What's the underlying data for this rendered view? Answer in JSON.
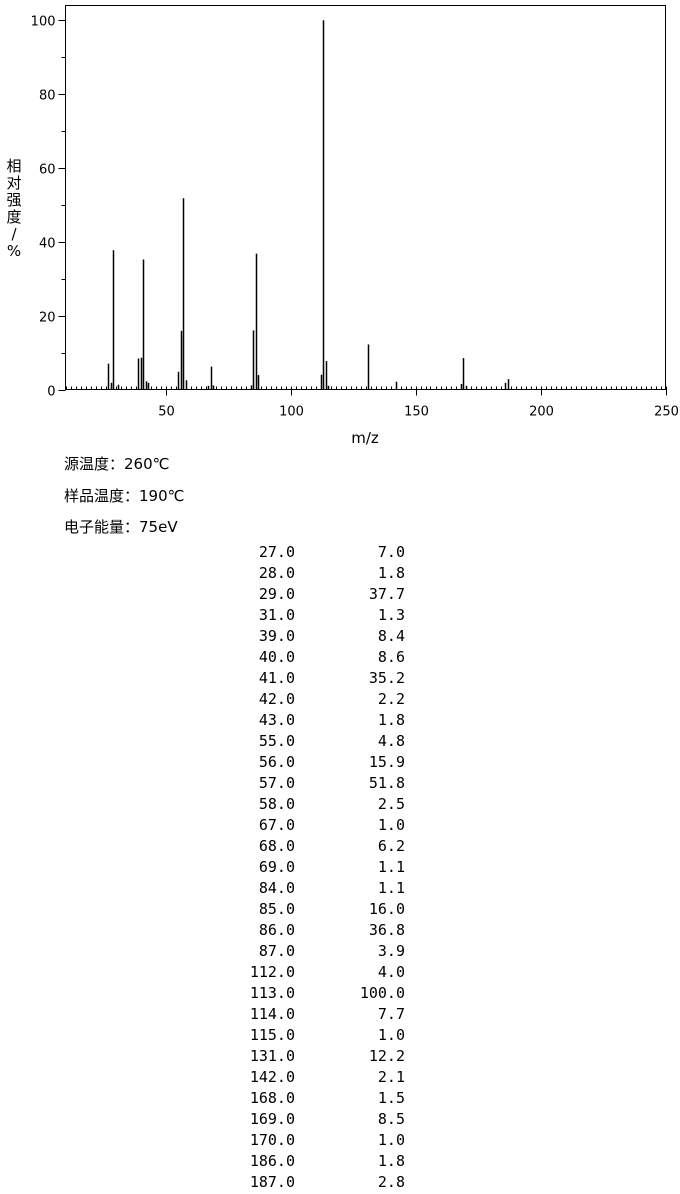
{
  "chart_data": {
    "type": "bar",
    "xlabel": "m/z",
    "ylabel": "相对强度/%",
    "xlim": [
      10,
      250
    ],
    "ylim": [
      0,
      104
    ],
    "x_ticks": [
      50,
      100,
      150,
      200,
      250
    ],
    "y_ticks": [
      0,
      20,
      40,
      60,
      80,
      100
    ],
    "peaks": [
      {
        "mz": 27.0,
        "intensity": 7.0
      },
      {
        "mz": 28.0,
        "intensity": 1.8
      },
      {
        "mz": 29.0,
        "intensity": 37.7
      },
      {
        "mz": 31.0,
        "intensity": 1.3
      },
      {
        "mz": 39.0,
        "intensity": 8.4
      },
      {
        "mz": 40.0,
        "intensity": 8.6
      },
      {
        "mz": 41.0,
        "intensity": 35.2
      },
      {
        "mz": 42.0,
        "intensity": 2.2
      },
      {
        "mz": 43.0,
        "intensity": 1.8
      },
      {
        "mz": 55.0,
        "intensity": 4.8
      },
      {
        "mz": 56.0,
        "intensity": 15.9
      },
      {
        "mz": 57.0,
        "intensity": 51.8
      },
      {
        "mz": 58.0,
        "intensity": 2.5
      },
      {
        "mz": 67.0,
        "intensity": 1.0
      },
      {
        "mz": 68.0,
        "intensity": 6.2
      },
      {
        "mz": 69.0,
        "intensity": 1.1
      },
      {
        "mz": 84.0,
        "intensity": 1.1
      },
      {
        "mz": 85.0,
        "intensity": 16.0
      },
      {
        "mz": 86.0,
        "intensity": 36.8
      },
      {
        "mz": 87.0,
        "intensity": 3.9
      },
      {
        "mz": 112.0,
        "intensity": 4.0
      },
      {
        "mz": 113.0,
        "intensity": 100.0
      },
      {
        "mz": 114.0,
        "intensity": 7.7
      },
      {
        "mz": 115.0,
        "intensity": 1.0
      },
      {
        "mz": 131.0,
        "intensity": 12.2
      },
      {
        "mz": 142.0,
        "intensity": 2.1
      },
      {
        "mz": 168.0,
        "intensity": 1.5
      },
      {
        "mz": 169.0,
        "intensity": 8.5
      },
      {
        "mz": 170.0,
        "intensity": 1.0
      },
      {
        "mz": 186.0,
        "intensity": 1.8
      },
      {
        "mz": 187.0,
        "intensity": 2.8
      }
    ],
    "peak_table": [
      [
        "27.0",
        "7.0"
      ],
      [
        "28.0",
        "1.8"
      ],
      [
        "29.0",
        "37.7"
      ],
      [
        "31.0",
        "1.3"
      ],
      [
        "39.0",
        "8.4"
      ],
      [
        "40.0",
        "8.6"
      ],
      [
        "41.0",
        "35.2"
      ],
      [
        "42.0",
        "2.2"
      ],
      [
        "43.0",
        "1.8"
      ],
      [
        "55.0",
        "4.8"
      ],
      [
        "56.0",
        "15.9"
      ],
      [
        "57.0",
        "51.8"
      ],
      [
        "58.0",
        "2.5"
      ],
      [
        "67.0",
        "1.0"
      ],
      [
        "68.0",
        "6.2"
      ],
      [
        "69.0",
        "1.1"
      ],
      [
        "84.0",
        "1.1"
      ],
      [
        "85.0",
        "16.0"
      ],
      [
        "86.0",
        "36.8"
      ],
      [
        "87.0",
        "3.9"
      ],
      [
        "112.0",
        "4.0"
      ],
      [
        "113.0",
        "100.0"
      ],
      [
        "114.0",
        "7.7"
      ],
      [
        "115.0",
        "1.0"
      ],
      [
        "131.0",
        "12.2"
      ],
      [
        "142.0",
        "2.1"
      ],
      [
        "168.0",
        "1.5"
      ],
      [
        "169.0",
        "8.5"
      ],
      [
        "170.0",
        "1.0"
      ],
      [
        "186.0",
        "1.8"
      ],
      [
        "187.0",
        "2.8"
      ]
    ]
  },
  "conditions": {
    "source_temp": "源温度：260℃",
    "sample_temp": "样品温度：190℃",
    "electron_energy": "电子能量：75eV"
  }
}
